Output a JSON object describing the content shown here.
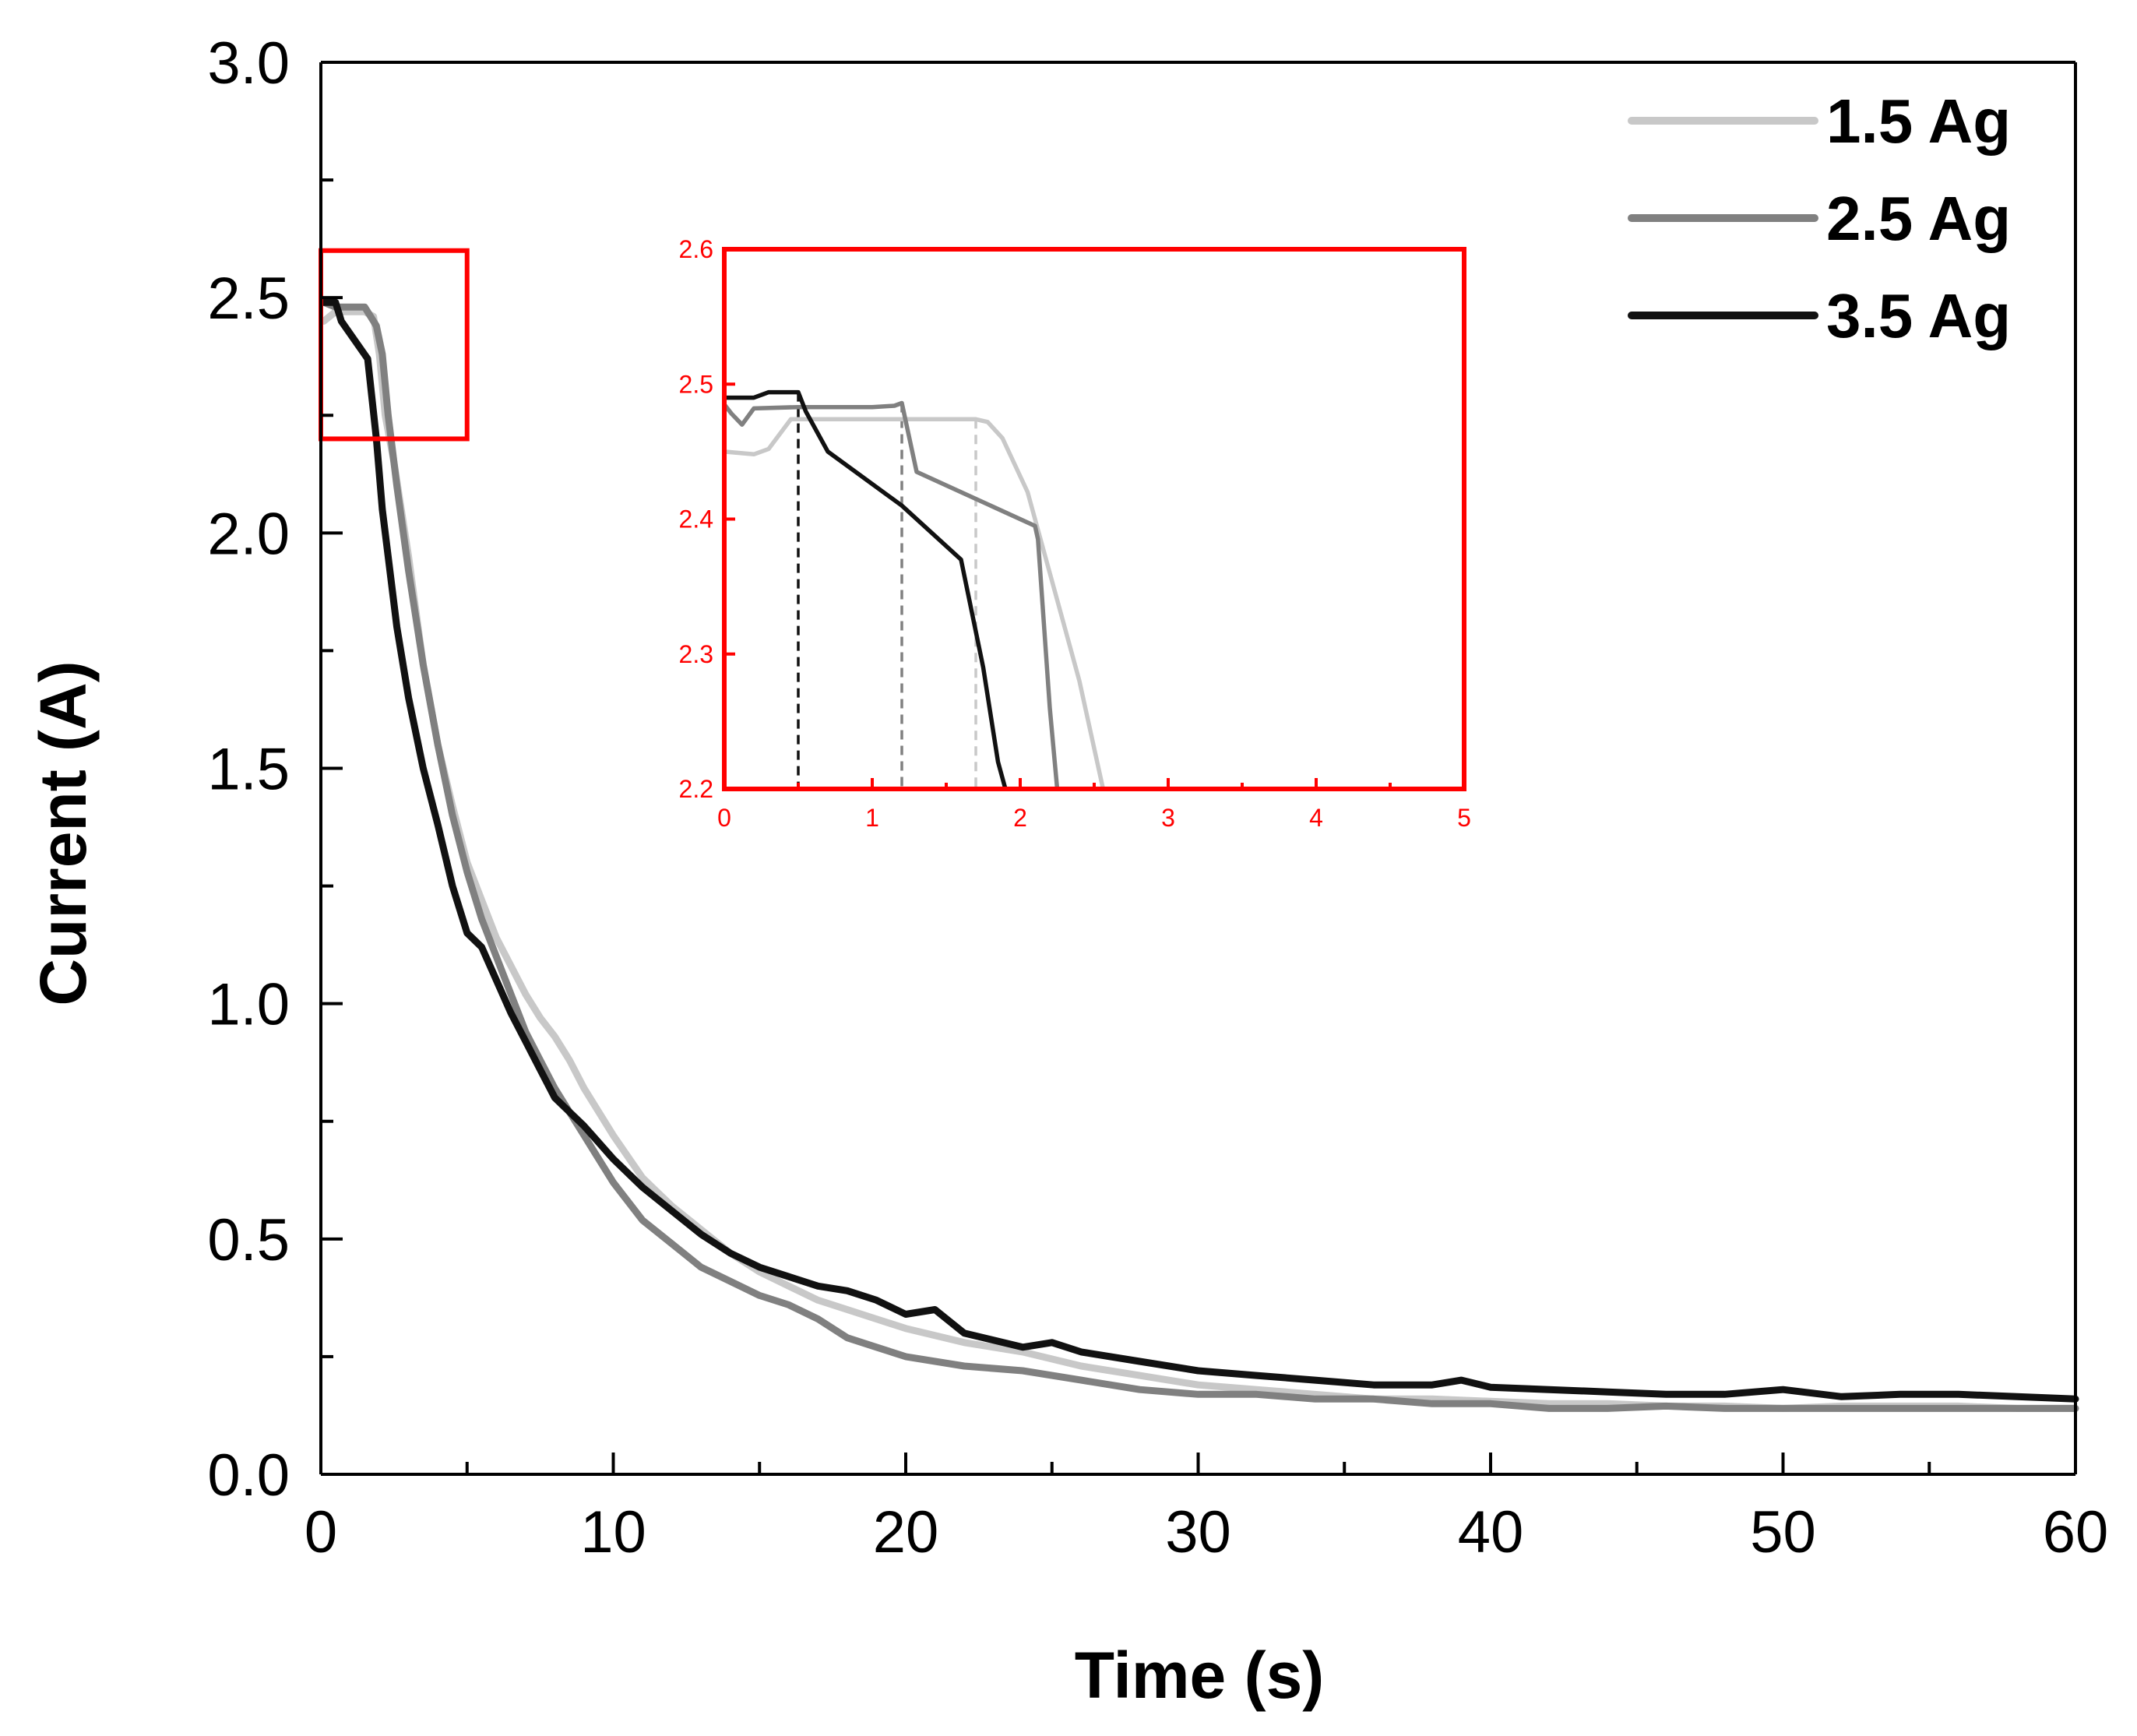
{
  "chart_data": [
    {
      "id": "main",
      "type": "line",
      "title": "",
      "xlabel": "Time (s)",
      "ylabel": "Current (A)",
      "xlim": [
        0,
        60
      ],
      "ylim": [
        0,
        3.0
      ],
      "xticks": [
        0,
        10,
        20,
        30,
        40,
        50,
        60
      ],
      "xtick_labels": [
        "0",
        "10",
        "20",
        "30",
        "40",
        "50",
        "60"
      ],
      "yticks": [
        0,
        0.5,
        1.0,
        1.5,
        2.0,
        2.5,
        3.0
      ],
      "ytick_labels": [
        "0.0",
        "0.5",
        "1.0",
        "1.5",
        "2.0",
        "2.5",
        "3.0"
      ],
      "grid": false,
      "legend_position": "top-right",
      "zoom_region": {
        "x": [
          0,
          5
        ],
        "y": [
          2.2,
          2.6
        ],
        "color": "#ff0000"
      },
      "series": [
        {
          "name": "1.5 Ag",
          "color": "#c8c8c8",
          "x": [
            0.1,
            0.5,
            1,
            1.5,
            1.8,
            2.0,
            2.2,
            2.5,
            3,
            3.5,
            4,
            4.5,
            5,
            5.5,
            6,
            6.5,
            7,
            7.5,
            8,
            8.5,
            9,
            10,
            11,
            12,
            13,
            14,
            15,
            16,
            17,
            18,
            19,
            20,
            22,
            24,
            26,
            28,
            30,
            32,
            34,
            36,
            38,
            40,
            42,
            44,
            46,
            48,
            50,
            52,
            54,
            56,
            58,
            60
          ],
          "y": [
            2.45,
            2.47,
            2.47,
            2.47,
            2.46,
            2.38,
            2.25,
            2.15,
            1.95,
            1.72,
            1.55,
            1.42,
            1.3,
            1.22,
            1.14,
            1.08,
            1.02,
            0.97,
            0.93,
            0.88,
            0.82,
            0.72,
            0.63,
            0.57,
            0.52,
            0.47,
            0.43,
            0.4,
            0.37,
            0.35,
            0.33,
            0.31,
            0.28,
            0.26,
            0.23,
            0.21,
            0.19,
            0.18,
            0.17,
            0.16,
            0.16,
            0.155,
            0.15,
            0.15,
            0.145,
            0.145,
            0.14,
            0.145,
            0.145,
            0.145,
            0.14,
            0.14
          ]
        },
        {
          "name": "2.5 Ag",
          "color": "#808080",
          "x": [
            0.1,
            0.5,
            1,
            1.2,
            1.5,
            1.9,
            2.1,
            2.3,
            2.6,
            3,
            3.5,
            4,
            4.5,
            5,
            5.5,
            6,
            6.5,
            7,
            7.5,
            8,
            8.5,
            9,
            10,
            11,
            12,
            13,
            14,
            15,
            16,
            17,
            18,
            19,
            20,
            22,
            24,
            26,
            28,
            30,
            32,
            34,
            36,
            38,
            40,
            42,
            44,
            46,
            48,
            50,
            52,
            54,
            56,
            58,
            60
          ],
          "y": [
            2.49,
            2.48,
            2.48,
            2.48,
            2.48,
            2.44,
            2.38,
            2.25,
            2.1,
            1.92,
            1.72,
            1.55,
            1.4,
            1.28,
            1.18,
            1.1,
            1.02,
            0.94,
            0.88,
            0.82,
            0.77,
            0.72,
            0.62,
            0.54,
            0.49,
            0.44,
            0.41,
            0.38,
            0.36,
            0.33,
            0.29,
            0.27,
            0.25,
            0.23,
            0.22,
            0.2,
            0.18,
            0.17,
            0.17,
            0.16,
            0.16,
            0.15,
            0.15,
            0.14,
            0.14,
            0.145,
            0.14,
            0.14,
            0.14,
            0.14,
            0.14,
            0.14,
            0.14
          ]
        },
        {
          "name": "3.5 Ag",
          "color": "#111111",
          "x": [
            0.1,
            0.5,
            0.7,
            1.6,
            1.9,
            2.1,
            2.3,
            2.6,
            3,
            3.5,
            4,
            4.5,
            5,
            5.5,
            6,
            6.5,
            7,
            7.5,
            8,
            8.5,
            9,
            10,
            11,
            12,
            13,
            14,
            15,
            16,
            17,
            18,
            19,
            20,
            21,
            22,
            24,
            25,
            26,
            28,
            30,
            32,
            34,
            36,
            38,
            39,
            40,
            42,
            44,
            46,
            48,
            50,
            52,
            54,
            56,
            58,
            60
          ],
          "y": [
            2.49,
            2.49,
            2.45,
            2.37,
            2.2,
            2.05,
            1.95,
            1.8,
            1.65,
            1.5,
            1.38,
            1.25,
            1.15,
            1.12,
            1.05,
            0.98,
            0.92,
            0.86,
            0.8,
            0.77,
            0.74,
            0.67,
            0.61,
            0.56,
            0.51,
            0.47,
            0.44,
            0.42,
            0.4,
            0.39,
            0.37,
            0.34,
            0.35,
            0.3,
            0.27,
            0.28,
            0.26,
            0.24,
            0.22,
            0.21,
            0.2,
            0.19,
            0.19,
            0.2,
            0.185,
            0.18,
            0.175,
            0.17,
            0.17,
            0.18,
            0.165,
            0.17,
            0.17,
            0.165,
            0.16
          ]
        }
      ],
      "legend": [
        {
          "label": "1.5 Ag",
          "color": "#c8c8c8"
        },
        {
          "label": "2.5 Ag",
          "color": "#808080"
        },
        {
          "label": "3.5 Ag",
          "color": "#111111"
        }
      ]
    },
    {
      "id": "inset",
      "type": "line",
      "title": "",
      "xlabel": "",
      "ylabel": "",
      "xlim": [
        0,
        5
      ],
      "ylim": [
        2.2,
        2.6
      ],
      "xticks": [
        0,
        1,
        2,
        3,
        4,
        5
      ],
      "xtick_labels": [
        "0",
        "1",
        "2",
        "3",
        "4",
        "5"
      ],
      "yticks": [
        2.2,
        2.3,
        2.4,
        2.5,
        2.6
      ],
      "ytick_labels": [
        "2.2",
        "2.3",
        "2.4",
        "2.5",
        "2.6"
      ],
      "frame_color": "#ff0000",
      "series": [
        {
          "name": "1.5 Ag",
          "color": "#c8c8c8",
          "x": [
            0,
            0.2,
            0.3,
            0.45,
            1.0,
            1.7,
            1.78,
            1.88,
            2.05,
            2.2,
            2.4,
            2.56
          ],
          "y": [
            2.45,
            2.448,
            2.452,
            2.474,
            2.474,
            2.474,
            2.472,
            2.46,
            2.42,
            2.36,
            2.28,
            2.2
          ]
        },
        {
          "name": "2.5 Ag",
          "color": "#808080",
          "x": [
            0,
            0.05,
            0.12,
            0.2,
            0.5,
            1.0,
            1.15,
            1.2,
            1.3,
            2.1,
            2.12,
            2.2,
            2.25
          ],
          "y": [
            2.485,
            2.478,
            2.47,
            2.482,
            2.483,
            2.483,
            2.484,
            2.486,
            2.435,
            2.395,
            2.385,
            2.26,
            2.2
          ]
        },
        {
          "name": "3.5 Ag",
          "color": "#111111",
          "x": [
            0,
            0.2,
            0.3,
            0.5,
            0.55,
            0.7,
            1.2,
            1.6,
            1.75,
            1.85,
            1.9
          ],
          "y": [
            2.49,
            2.49,
            2.494,
            2.494,
            2.48,
            2.45,
            2.41,
            2.37,
            2.29,
            2.22,
            2.2
          ]
        }
      ],
      "markers": [
        {
          "x": 0.5,
          "color": "#111111"
        },
        {
          "x": 1.2,
          "color": "#808080"
        },
        {
          "x": 1.7,
          "color": "#c8c8c8"
        }
      ]
    }
  ]
}
